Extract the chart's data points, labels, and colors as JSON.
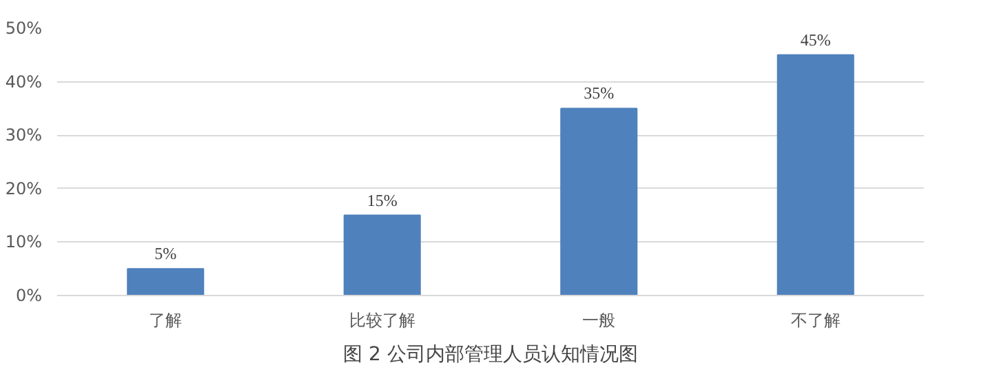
{
  "chart_data": {
    "type": "bar",
    "title": "图 2 公司内部管理人员认知情况图",
    "categories": [
      "了解",
      "比较了解",
      "一般",
      "不了解"
    ],
    "values": [
      5,
      15,
      35,
      45
    ],
    "value_labels": [
      "5%",
      "15%",
      "35%",
      "45%"
    ],
    "color": "#4f81bd",
    "ylim": [
      0,
      50
    ],
    "yticks": [
      {
        "value": 0,
        "label": "0%"
      },
      {
        "value": 10,
        "label": "10%"
      },
      {
        "value": 20,
        "label": "20%"
      },
      {
        "value": 30,
        "label": "30%"
      },
      {
        "value": 40,
        "label": "40%"
      },
      {
        "value": 50,
        "label": "50%"
      }
    ],
    "grid": "y"
  }
}
